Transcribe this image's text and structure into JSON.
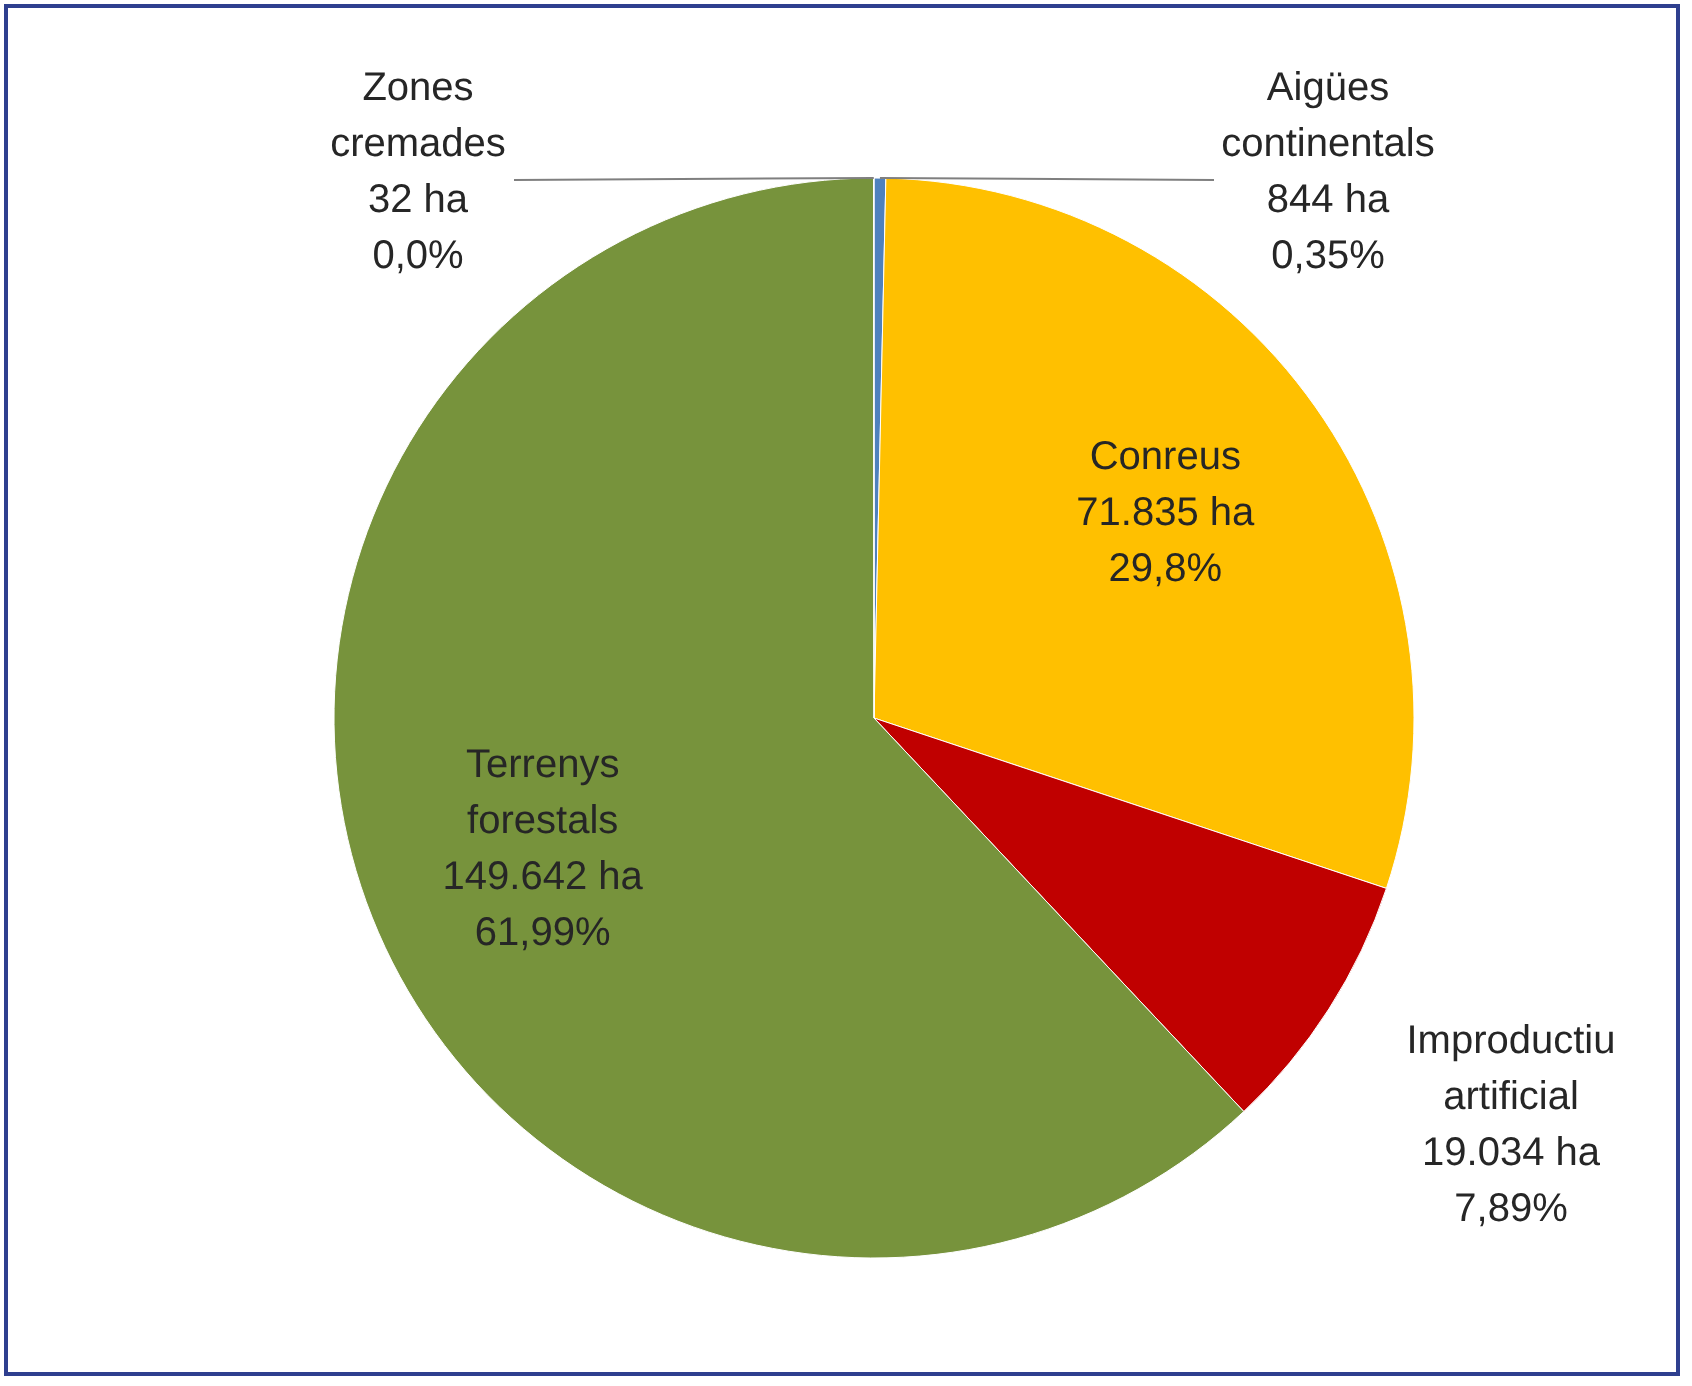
{
  "chart_data": {
    "type": "pie",
    "categories": [
      "Aigües continentals",
      "Conreus",
      "Improductiu artificial",
      "Terrenys forestals",
      "Zones cremades"
    ],
    "values": [
      844,
      71835,
      19034,
      149642,
      32
    ],
    "colors": [
      "#4f81bd",
      "#ffc000",
      "#c00000",
      "#77933c",
      "#9bbb59"
    ],
    "value_labels": [
      "844 ha\n0,35%",
      "71.835 ha\n29,8%",
      "19.034 ha\n7,89%",
      "149.642 ha\n61,99%",
      "32 ha\n0,0%"
    ]
  }
}
